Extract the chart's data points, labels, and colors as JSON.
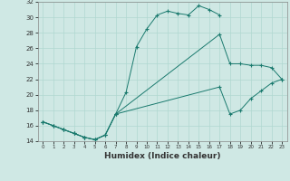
{
  "title": "",
  "xlabel": "Humidex (Indice chaleur)",
  "bg_color": "#cfe8e4",
  "line_color": "#1a7a6e",
  "grid_color": "#b0d8d0",
  "xlim": [
    -0.5,
    23.5
  ],
  "ylim": [
    14,
    32
  ],
  "xticks": [
    0,
    1,
    2,
    3,
    4,
    5,
    6,
    7,
    8,
    9,
    10,
    11,
    12,
    13,
    14,
    15,
    16,
    17,
    18,
    19,
    20,
    21,
    22,
    23
  ],
  "yticks": [
    14,
    16,
    18,
    20,
    22,
    24,
    26,
    28,
    30,
    32
  ],
  "curve1_x": [
    0,
    1,
    2,
    3,
    4,
    5,
    6,
    7,
    8,
    9,
    10,
    11,
    12,
    13,
    14,
    15,
    16,
    17
  ],
  "curve1_y": [
    16.5,
    16.0,
    15.5,
    15.0,
    14.5,
    14.2,
    14.8,
    17.5,
    20.3,
    26.2,
    28.5,
    30.3,
    30.8,
    30.5,
    30.3,
    31.5,
    31.0,
    30.3
  ],
  "curve2_x": [
    0,
    1,
    2,
    3,
    4,
    5,
    6,
    7,
    17,
    18,
    19,
    20,
    21,
    22,
    23
  ],
  "curve2_y": [
    16.5,
    16.0,
    15.5,
    15.0,
    14.5,
    14.2,
    14.8,
    17.5,
    27.8,
    24.0,
    24.0,
    23.8,
    23.8,
    23.5,
    22.0
  ],
  "curve3_x": [
    0,
    1,
    2,
    3,
    4,
    5,
    6,
    7,
    17,
    18,
    19,
    20,
    21,
    22,
    23
  ],
  "curve3_y": [
    16.5,
    16.0,
    15.5,
    15.0,
    14.5,
    14.2,
    14.8,
    17.5,
    21.0,
    17.5,
    18.0,
    19.5,
    20.5,
    21.5,
    22.0
  ]
}
